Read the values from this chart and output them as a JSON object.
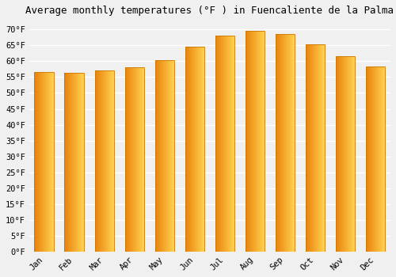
{
  "title": "Average monthly temperatures (°F ) in Fuencaliente de la Palma",
  "months": [
    "Jan",
    "Feb",
    "Mar",
    "Apr",
    "May",
    "Jun",
    "Jul",
    "Aug",
    "Sep",
    "Oct",
    "Nov",
    "Dec"
  ],
  "values": [
    56.5,
    56.3,
    57.2,
    58.1,
    60.4,
    64.6,
    68.0,
    69.6,
    68.5,
    65.3,
    61.5,
    58.3
  ],
  "bar_color_left": "#E8820A",
  "bar_color_right": "#FFD555",
  "bar_edge_color": "#CC7700",
  "background_color": "#f0f0f0",
  "grid_color": "#ffffff",
  "ylim": [
    0,
    73
  ],
  "yticks": [
    0,
    5,
    10,
    15,
    20,
    25,
    30,
    35,
    40,
    45,
    50,
    55,
    60,
    65,
    70
  ],
  "ytick_labels": [
    "0°F",
    "5°F",
    "10°F",
    "15°F",
    "20°F",
    "25°F",
    "30°F",
    "35°F",
    "40°F",
    "45°F",
    "50°F",
    "55°F",
    "60°F",
    "65°F",
    "70°F"
  ],
  "title_fontsize": 9,
  "tick_fontsize": 7.5,
  "font_family": "monospace",
  "bar_width": 0.65
}
